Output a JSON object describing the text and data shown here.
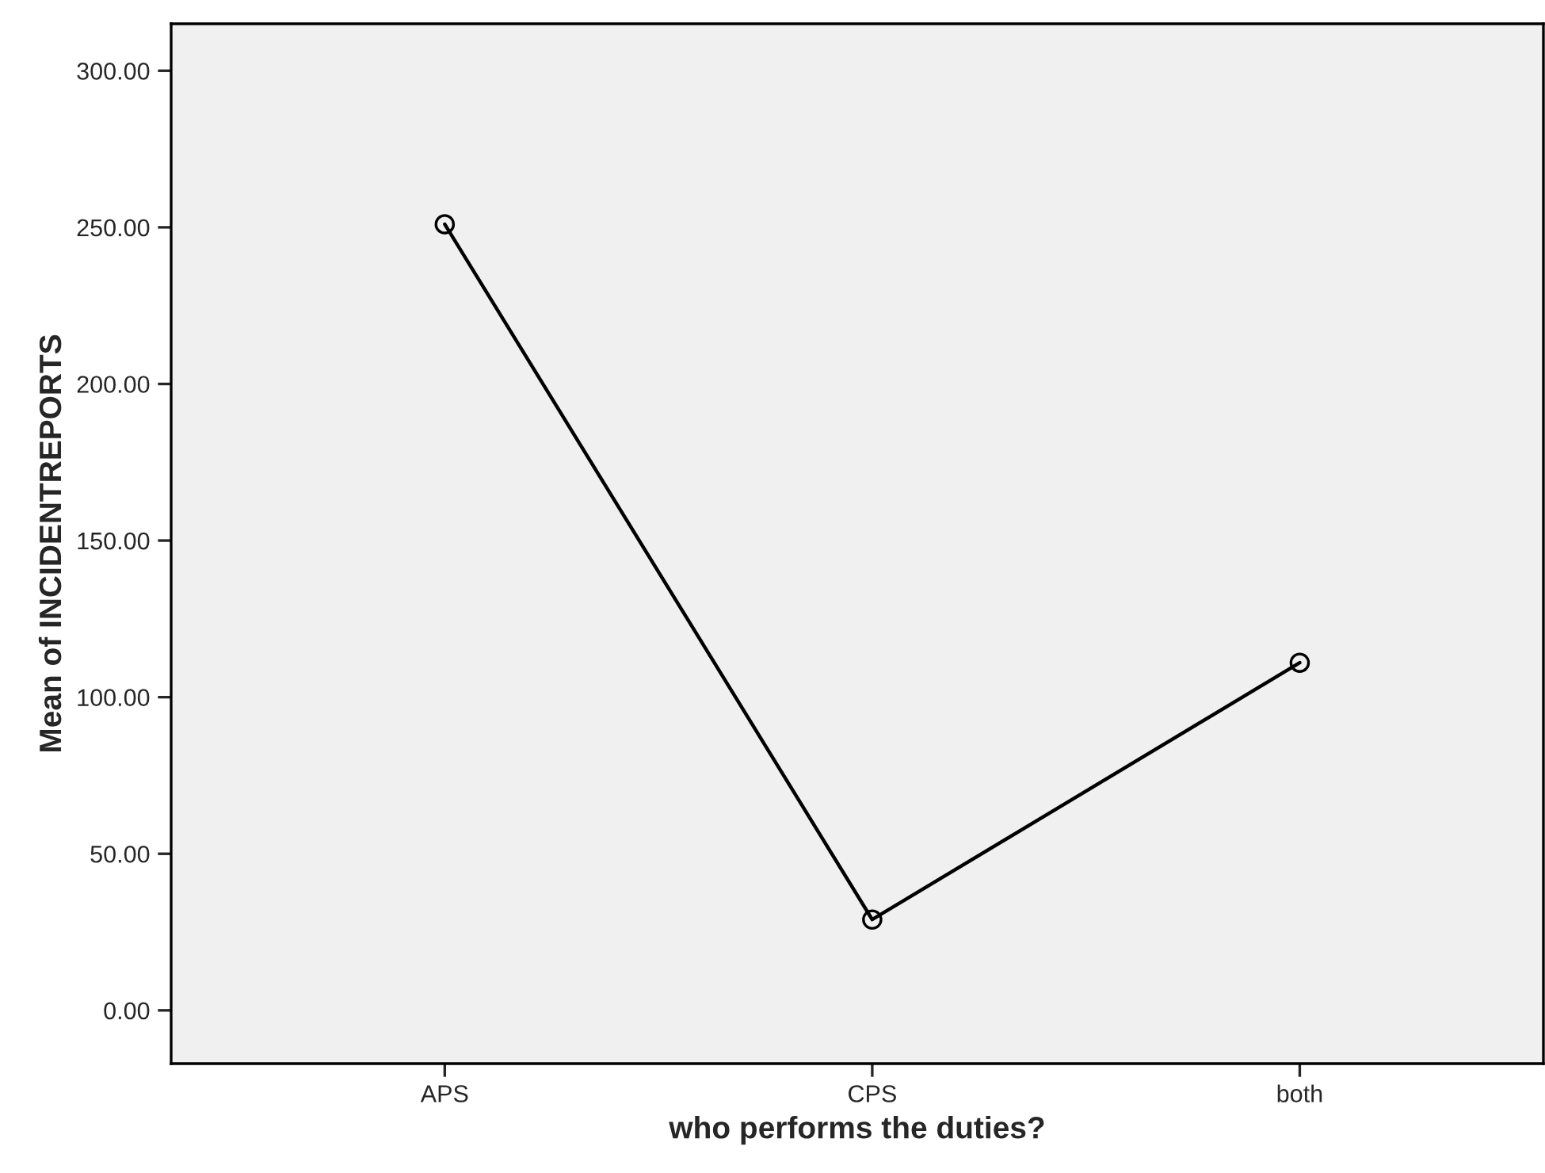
{
  "chart_data": {
    "type": "line",
    "xlabel": "who performs the duties?",
    "ylabel": "Mean of INCIDENTREPORTS",
    "categories": [
      "APS",
      "CPS",
      "both"
    ],
    "series": [
      {
        "color": "#000000",
        "values": [
          251,
          29,
          111
        ]
      }
    ],
    "ylim": [
      -17,
      315
    ],
    "yticks": [
      {
        "value": 0,
        "label": "0.00"
      },
      {
        "value": 50,
        "label": "50.00"
      },
      {
        "value": 100,
        "label": "100.00"
      },
      {
        "value": 150,
        "label": "150.00"
      },
      {
        "value": 200,
        "label": "200.00"
      },
      {
        "value": 250,
        "label": "250.00"
      },
      {
        "value": 300,
        "label": "300.00"
      }
    ],
    "marker": "circle",
    "line_style": "solid",
    "grid": false,
    "legend": false
  }
}
